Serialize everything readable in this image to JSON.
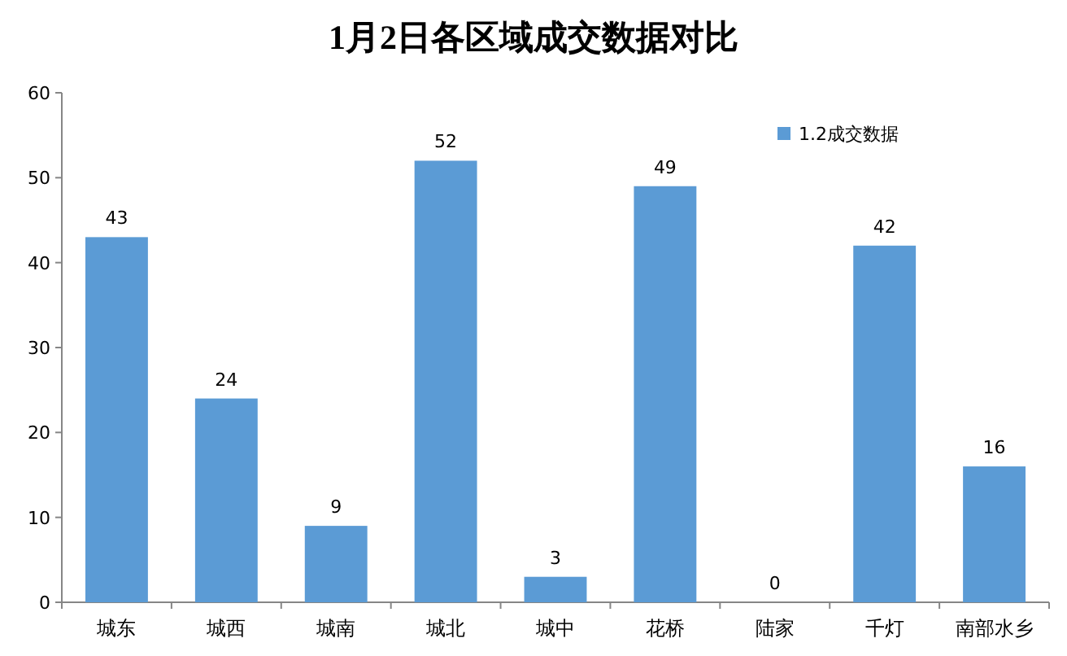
{
  "chart_data": {
    "type": "bar",
    "title": "1月2日各区域成交数据对比",
    "categories": [
      "城东",
      "城西",
      "城南",
      "城北",
      "城中",
      "花桥",
      "陆家",
      "千灯",
      "南部水乡"
    ],
    "series": [
      {
        "name": "1.2成交数据",
        "color": "#5b9bd5",
        "values": [
          43,
          24,
          9,
          52,
          3,
          49,
          0,
          42,
          16
        ]
      }
    ],
    "ylim": [
      0,
      60
    ],
    "yticks": [
      0,
      10,
      20,
      30,
      40,
      50,
      60
    ],
    "data_labels": true,
    "legend": "top right"
  }
}
